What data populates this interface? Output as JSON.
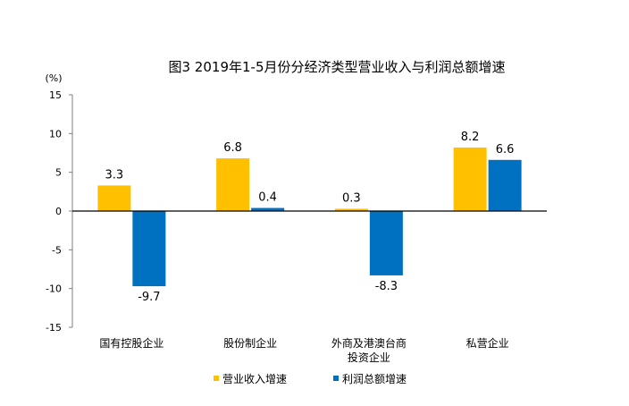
{
  "chart_data": {
    "type": "bar",
    "title": "图3 2019年1-5月份分经济类型营业收入与利润总额增速",
    "ylabel": "(%)",
    "xlabel": "",
    "ylim": [
      -15,
      15
    ],
    "yticks": [
      15,
      10,
      5,
      0,
      -5,
      -10,
      -15
    ],
    "ytick_labels": [
      "15",
      "10",
      "5",
      "0",
      "-5",
      "-10",
      "-15"
    ],
    "categories": [
      [
        "国有控股企业"
      ],
      [
        "股份制企业"
      ],
      [
        "外商及港澳台商",
        "投资企业"
      ],
      [
        "私营企业"
      ]
    ],
    "series": [
      {
        "name": "营业收入增速",
        "color": "#FFC000",
        "values": [
          3.3,
          6.8,
          0.3,
          8.2
        ],
        "labels": [
          "3.3",
          "6.8",
          "0.3",
          "8.2"
        ]
      },
      {
        "name": "利润总额增速",
        "color": "#0070C0",
        "values": [
          -9.7,
          0.4,
          -8.3,
          6.6
        ],
        "labels": [
          "-9.7",
          "0.4",
          "-8.3",
          "6.6"
        ]
      }
    ],
    "grid": false,
    "legend": "bottom"
  }
}
